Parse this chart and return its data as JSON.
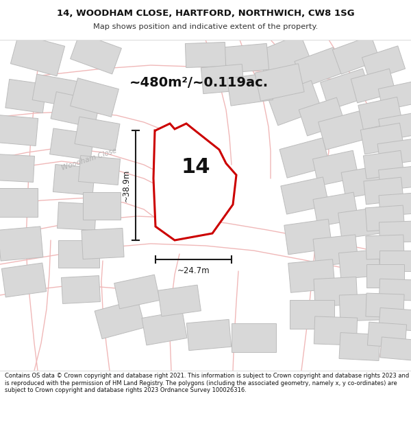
{
  "title_line1": "14, WOODHAM CLOSE, HARTFORD, NORTHWICH, CW8 1SG",
  "title_line2": "Map shows position and indicative extent of the property.",
  "area_text": "~480m²/~0.119ac.",
  "label_14": "14",
  "dim_height": "~38.9m",
  "dim_width": "~24.7m",
  "street_label": "Woodham Close",
  "footer_text": "Contains OS data © Crown copyright and database right 2021. This information is subject to Crown copyright and database rights 2023 and is reproduced with the permission of HM Land Registry. The polygons (including the associated geometry, namely x, y co-ordinates) are subject to Crown copyright and database rights 2023 Ordnance Survey 100026316.",
  "map_bg": "#f7f6f4",
  "building_color": "#d8d8d8",
  "building_edge": "#bcbcbc",
  "plot_fill": "#ffffff",
  "plot_edge": "#cc0000",
  "road_outline": "#f0b8b8",
  "dim_color": "#1a1a1a",
  "street_label_color": "#b0b0b0",
  "title_bg": "#ffffff",
  "footer_bg": "#ffffff",
  "area_text_color": "#111111",
  "separator_color": "#dddddd"
}
